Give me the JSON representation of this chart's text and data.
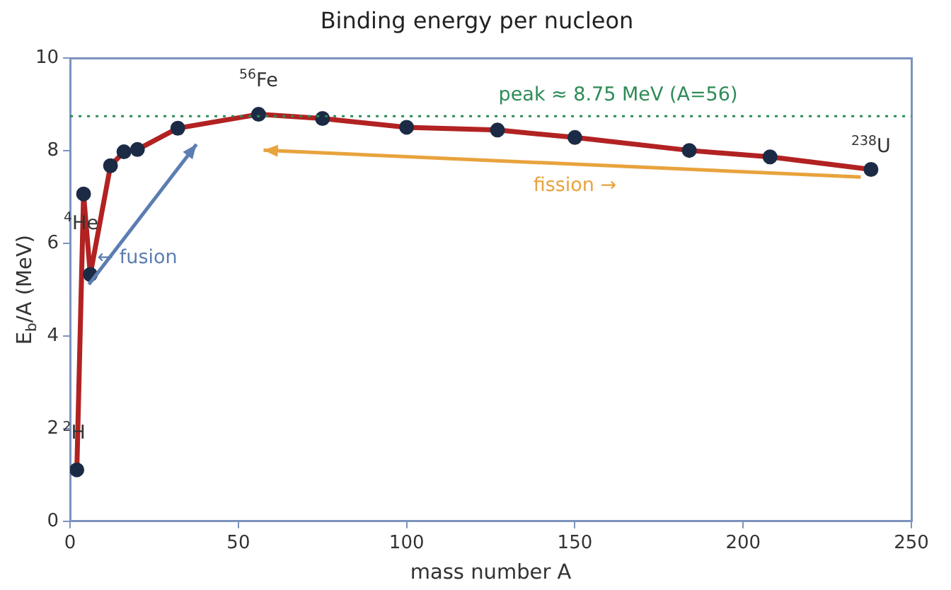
{
  "chart_data": {
    "type": "line",
    "title": "Binding energy per nucleon",
    "xlabel": "mass number A",
    "ylabel": "E$_{b}$/A (MeV)",
    "x": [
      2,
      4,
      6,
      12,
      16,
      20,
      32,
      56,
      75,
      100,
      127,
      150,
      184,
      208,
      238
    ],
    "series": [
      {
        "color": "#b22222",
        "values": [
          1.11,
          7.07,
          5.33,
          7.68,
          7.98,
          8.03,
          8.49,
          8.79,
          8.7,
          8.51,
          8.45,
          8.29,
          8.01,
          7.87,
          7.6
        ]
      }
    ],
    "marker": "circle",
    "line_style": "solid",
    "grid": false,
    "legend": false,
    "xlim": [
      0,
      250
    ],
    "xticks": [
      0,
      50,
      100,
      150,
      200,
      250
    ],
    "ylim": [
      0,
      10
    ],
    "yticks": [
      0,
      2,
      4,
      6,
      8,
      10
    ],
    "ref_lines": [
      {
        "axis": "y",
        "value": 8.75,
        "label": "peak ≈ 8.75 MeV (A=56)",
        "color": "#2e8b57",
        "line_style": "dotted"
      }
    ],
    "annotations": [
      {
        "text": "$^{2}$H",
        "x": 2,
        "y": 1.11
      },
      {
        "text": "$^{4}$He",
        "x": 4,
        "y": 7.07
      },
      {
        "text": "$^{56}$Fe",
        "x": 56,
        "y": 8.79
      },
      {
        "text": "$^{238}$U",
        "x": 238,
        "y": 7.6
      },
      {
        "text": "← fusion",
        "x": 6,
        "y": 5.33
      },
      {
        "text": "fission →",
        "x": 150,
        "y": 8.29
      }
    ]
  }
}
